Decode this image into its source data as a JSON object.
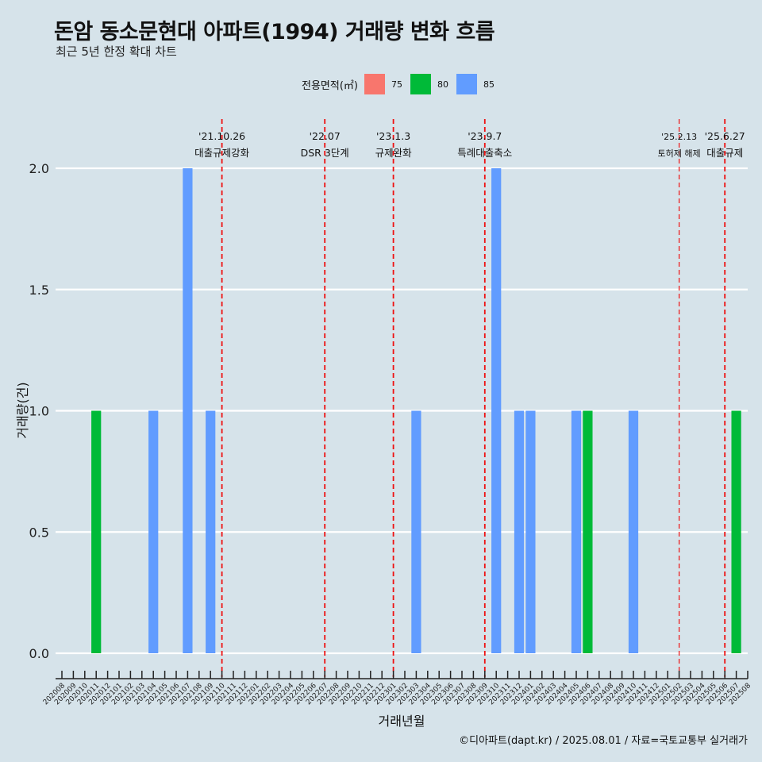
{
  "header": {
    "title": "돈암 동소문현대 아파트(1994) 거래량 변화 흐름",
    "subtitle": "최근 5년 한정 확대 차트"
  },
  "legend": {
    "title": "전용면적(㎡)",
    "items": [
      {
        "label": "75",
        "color": "#f8766d"
      },
      {
        "label": "80",
        "color": "#00ba38"
      },
      {
        "label": "85",
        "color": "#619cff"
      }
    ]
  },
  "caption": "©디아파트(dapt.kr) / 2025.08.01 / 자료=국토교통부 실거래가",
  "chart_data": {
    "type": "bar",
    "xlabel": "거래년월",
    "ylabel": "거래량(건)",
    "ylim": [
      0,
      2
    ],
    "yticks": [
      0.0,
      0.5,
      1.0,
      1.5,
      2.0
    ],
    "ytick_labels": [
      "0.0",
      "0.5",
      "1.0",
      "1.5",
      "2.0"
    ],
    "grid": true,
    "legend_position": "top",
    "categories": [
      "202008",
      "202009",
      "202010",
      "202011",
      "202012",
      "202101",
      "202102",
      "202103",
      "202104",
      "202105",
      "202106",
      "202107",
      "202108",
      "202109",
      "202110",
      "202111",
      "202112",
      "202201",
      "202202",
      "202203",
      "202204",
      "202205",
      "202206",
      "202207",
      "202208",
      "202209",
      "202210",
      "202211",
      "202212",
      "202301",
      "202302",
      "202303",
      "202304",
      "202305",
      "202306",
      "202307",
      "202308",
      "202309",
      "202310",
      "202311",
      "202312",
      "202401",
      "202402",
      "202403",
      "202404",
      "202405",
      "202406",
      "202407",
      "202408",
      "202409",
      "202410",
      "202411",
      "202412",
      "202501",
      "202502",
      "202503",
      "202504",
      "202505",
      "202506",
      "202507",
      "202508"
    ],
    "bars": [
      {
        "month": "202011",
        "area": "80",
        "value": 1
      },
      {
        "month": "202104",
        "area": "85",
        "value": 1
      },
      {
        "month": "202107",
        "area": "85",
        "value": 2
      },
      {
        "month": "202109",
        "area": "85",
        "value": 1
      },
      {
        "month": "202303",
        "area": "85",
        "value": 1
      },
      {
        "month": "202310",
        "area": "85",
        "value": 2
      },
      {
        "month": "202312",
        "area": "85",
        "value": 1
      },
      {
        "month": "202401",
        "area": "85",
        "value": 1
      },
      {
        "month": "202405",
        "area": "85",
        "value": 1
      },
      {
        "month": "202406",
        "area": "80",
        "value": 1
      },
      {
        "month": "202410",
        "area": "85",
        "value": 1
      },
      {
        "month": "202507",
        "area": "80",
        "value": 1
      }
    ],
    "events": [
      {
        "month": "202110",
        "date": "'21.10.26",
        "label": "대출규제강화",
        "small": false
      },
      {
        "month": "202207",
        "date": "'22.07",
        "label": "DSR 3단계",
        "small": false
      },
      {
        "month": "202301",
        "date": "'23.1.3",
        "label": "규제완화",
        "small": false
      },
      {
        "month": "202309",
        "date": "'23.9.7",
        "label": "특례대출축소",
        "small": false
      },
      {
        "month": "202502",
        "date": "'25.2.13",
        "label": "토허제 해제",
        "small": true
      },
      {
        "month": "202506",
        "date": "'25.6.27",
        "label": "대출규제",
        "small": false
      }
    ]
  }
}
